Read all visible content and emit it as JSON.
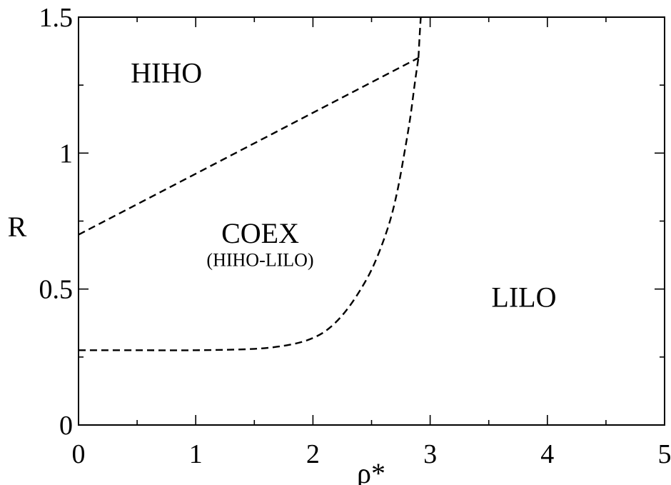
{
  "chart_data": {
    "type": "line",
    "xlabel": "ρ*",
    "ylabel": "R",
    "xlim": [
      0,
      5
    ],
    "ylim": [
      0,
      1.5
    ],
    "x_ticks": [
      {
        "value": 0,
        "label": "0"
      },
      {
        "value": 1,
        "label": "1"
      },
      {
        "value": 2,
        "label": "2"
      },
      {
        "value": 3,
        "label": "3"
      },
      {
        "value": 4,
        "label": "4"
      },
      {
        "value": 5,
        "label": "5"
      }
    ],
    "y_ticks": [
      {
        "value": 0,
        "label": "0"
      },
      {
        "value": 0.5,
        "label": "0.5"
      },
      {
        "value": 1,
        "label": "1"
      },
      {
        "value": 1.5,
        "label": "1.5"
      }
    ],
    "x_minor_step": 0.5,
    "y_minor_step": 0.25,
    "grid": false,
    "series": [
      {
        "style": "dashed",
        "x": [
          0,
          2.9
        ],
        "y": [
          0.7,
          1.35
        ]
      },
      {
        "style": "dashed",
        "x": [
          0,
          0.5,
          1.0,
          1.5,
          1.8,
          2.0,
          2.15,
          2.3,
          2.45,
          2.55,
          2.65,
          2.72,
          2.78,
          2.83,
          2.87,
          2.9
        ],
        "y": [
          0.275,
          0.275,
          0.275,
          0.28,
          0.295,
          0.32,
          0.36,
          0.43,
          0.53,
          0.62,
          0.74,
          0.86,
          1.0,
          1.13,
          1.26,
          1.35
        ]
      },
      {
        "style": "dashed",
        "x": [
          2.9,
          2.91,
          2.92
        ],
        "y": [
          1.35,
          1.43,
          1.5
        ]
      }
    ],
    "annotations": [
      {
        "id": "hiho",
        "text": "HIHO",
        "x": 0.75,
        "y": 1.26
      },
      {
        "id": "coex",
        "text": "COEX",
        "x": 1.55,
        "y": 0.67
      },
      {
        "id": "coex-sub",
        "text": "(HIHO-LILO)",
        "x": 1.55,
        "y": 0.585
      },
      {
        "id": "lilo",
        "text": "LILO",
        "x": 3.8,
        "y": 0.435
      }
    ]
  }
}
